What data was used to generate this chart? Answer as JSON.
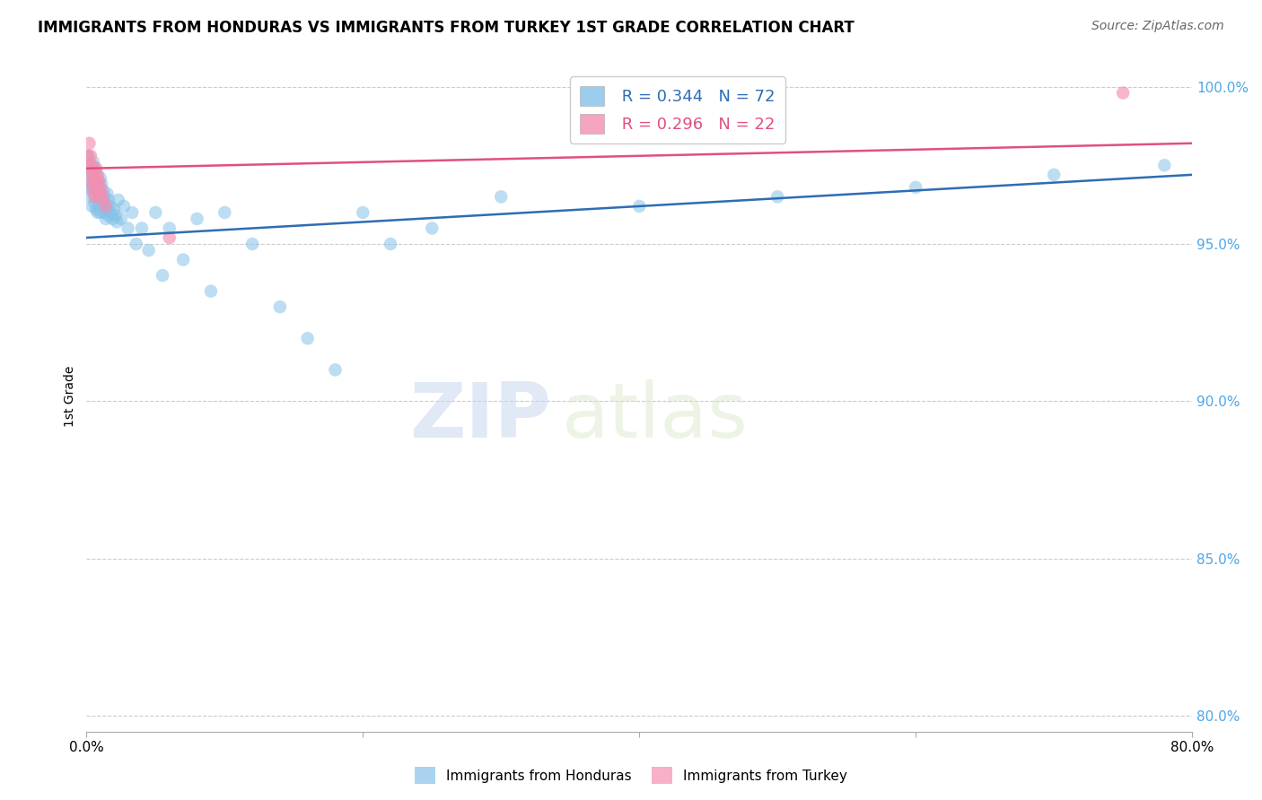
{
  "title": "IMMIGRANTS FROM HONDURAS VS IMMIGRANTS FROM TURKEY 1ST GRADE CORRELATION CHART",
  "source": "Source: ZipAtlas.com",
  "ylabel_label": "1st Grade",
  "legend_label_1": "Immigrants from Honduras",
  "legend_label_2": "Immigrants from Turkey",
  "r1": 0.344,
  "n1": 72,
  "r2": 0.296,
  "n2": 22,
  "color_blue": "#85c1e8",
  "color_pink": "#f48fb0",
  "line_color_blue": "#2e6db4",
  "line_color_pink": "#e05080",
  "xmin": 0.0,
  "xmax": 0.8,
  "ymin": 0.795,
  "ymax": 1.008,
  "yticks": [
    0.8,
    0.85,
    0.9,
    0.95,
    1.0
  ],
  "ytick_labels": [
    "80.0%",
    "85.0%",
    "90.0%",
    "95.0%",
    "100.0%"
  ],
  "xticks": [
    0.0,
    0.2,
    0.4,
    0.6,
    0.8
  ],
  "xtick_labels": [
    "0.0%",
    "",
    "",
    "",
    "80.0%"
  ],
  "watermark_zip": "ZIP",
  "watermark_atlas": "atlas",
  "blue_x": [
    0.001,
    0.002,
    0.002,
    0.003,
    0.003,
    0.003,
    0.004,
    0.004,
    0.004,
    0.005,
    0.005,
    0.005,
    0.006,
    0.006,
    0.006,
    0.007,
    0.007,
    0.007,
    0.008,
    0.008,
    0.008,
    0.009,
    0.009,
    0.01,
    0.01,
    0.01,
    0.011,
    0.011,
    0.012,
    0.012,
    0.013,
    0.013,
    0.014,
    0.014,
    0.015,
    0.015,
    0.016,
    0.016,
    0.017,
    0.018,
    0.019,
    0.02,
    0.021,
    0.022,
    0.023,
    0.025,
    0.027,
    0.03,
    0.033,
    0.036,
    0.04,
    0.045,
    0.05,
    0.055,
    0.06,
    0.07,
    0.08,
    0.09,
    0.1,
    0.12,
    0.14,
    0.16,
    0.18,
    0.2,
    0.22,
    0.25,
    0.3,
    0.4,
    0.5,
    0.6,
    0.7,
    0.78
  ],
  "blue_y": [
    0.978,
    0.972,
    0.968,
    0.975,
    0.97,
    0.965,
    0.973,
    0.968,
    0.962,
    0.976,
    0.971,
    0.966,
    0.974,
    0.969,
    0.963,
    0.972,
    0.967,
    0.961,
    0.97,
    0.965,
    0.96,
    0.968,
    0.963,
    0.971,
    0.966,
    0.96,
    0.969,
    0.964,
    0.967,
    0.962,
    0.965,
    0.96,
    0.963,
    0.958,
    0.966,
    0.961,
    0.964,
    0.959,
    0.962,
    0.96,
    0.958,
    0.961,
    0.959,
    0.957,
    0.964,
    0.958,
    0.962,
    0.955,
    0.96,
    0.95,
    0.955,
    0.948,
    0.96,
    0.94,
    0.955,
    0.945,
    0.958,
    0.935,
    0.96,
    0.95,
    0.93,
    0.92,
    0.91,
    0.96,
    0.95,
    0.955,
    0.965,
    0.962,
    0.965,
    0.968,
    0.972,
    0.975
  ],
  "pink_x": [
    0.001,
    0.002,
    0.002,
    0.003,
    0.003,
    0.004,
    0.004,
    0.005,
    0.005,
    0.006,
    0.006,
    0.007,
    0.007,
    0.008,
    0.008,
    0.009,
    0.01,
    0.011,
    0.012,
    0.014,
    0.06,
    0.75
  ],
  "pink_y": [
    0.978,
    0.982,
    0.975,
    0.978,
    0.972,
    0.975,
    0.969,
    0.973,
    0.967,
    0.971,
    0.965,
    0.974,
    0.969,
    0.972,
    0.966,
    0.97,
    0.968,
    0.966,
    0.964,
    0.962,
    0.952,
    0.998
  ],
  "blue_line_x": [
    0.0,
    0.8
  ],
  "blue_line_y": [
    0.952,
    0.972
  ],
  "pink_line_x": [
    0.0,
    0.8
  ],
  "pink_line_y": [
    0.974,
    0.982
  ]
}
